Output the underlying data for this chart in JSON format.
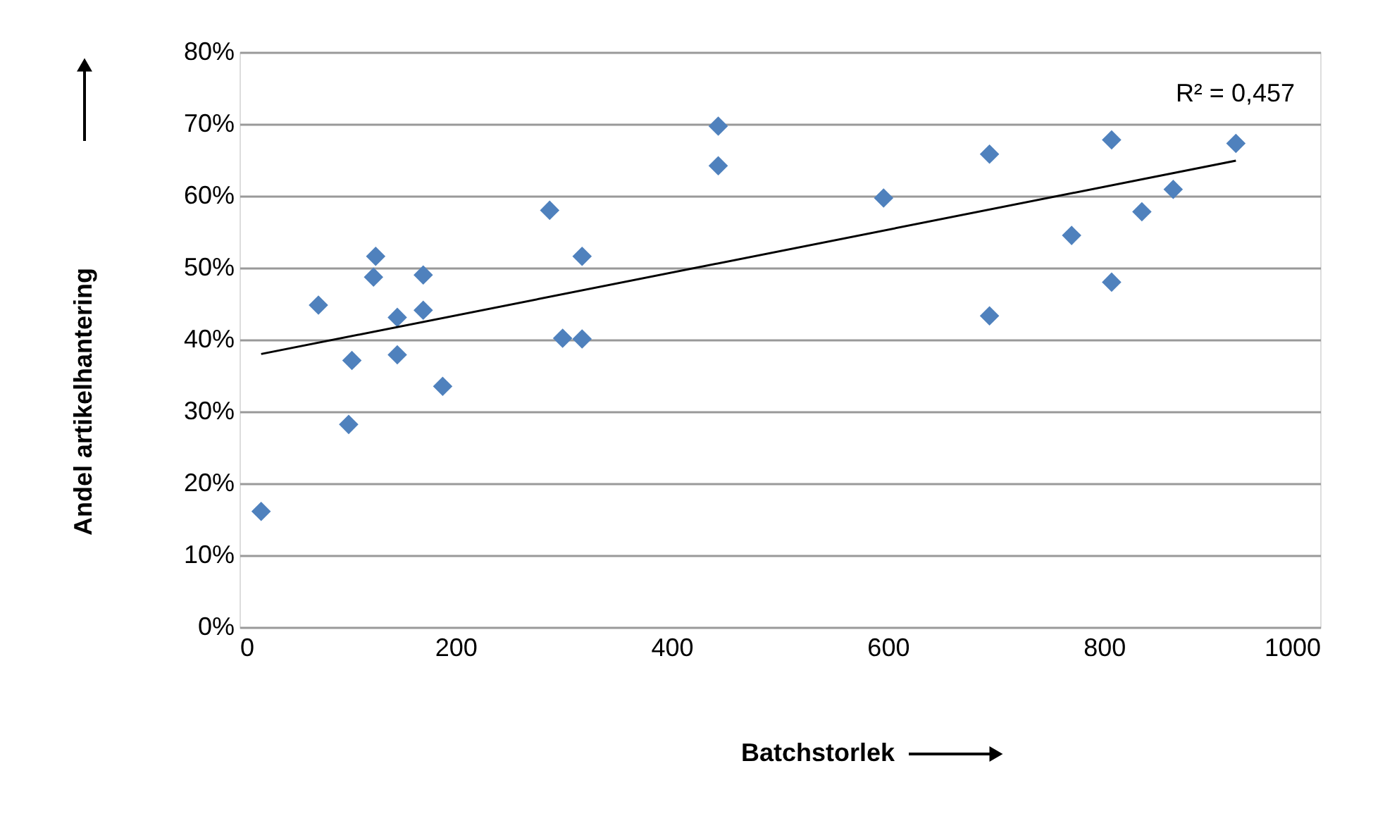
{
  "chart_data": {
    "type": "scatter",
    "xlabel": "Batchstorlek",
    "ylabel": "Andel artikelhantering",
    "xlim": [
      0,
      1000
    ],
    "xticks": [
      0,
      200,
      400,
      600,
      800,
      {
        "value": 1000,
        "label": "1000"
      }
    ],
    "ylim": [
      0,
      80
    ],
    "yticks": [
      {
        "value": 0,
        "label": "0%"
      },
      {
        "value": 10,
        "label": "10%"
      },
      {
        "value": 20,
        "label": "20%"
      },
      {
        "value": 30,
        "label": "30%"
      },
      {
        "value": 40,
        "label": "40%"
      },
      {
        "value": 50,
        "label": "50%"
      },
      {
        "value": 60,
        "label": "60%"
      },
      {
        "value": 70,
        "label": "70%"
      },
      {
        "value": 80,
        "label": "80%"
      }
    ],
    "grid": "y",
    "marker": "diamond",
    "annotations": [
      "R² = 0,457"
    ],
    "series": [
      {
        "color": "#4f81bd",
        "x": [
          20,
          73,
          101,
          104,
          126,
          124,
          146,
          146,
          170,
          170,
          188,
          287,
          299,
          317,
          317,
          443,
          443,
          596,
          694,
          694,
          770,
          807,
          807,
          835,
          864,
          922
        ],
        "values": [
          16.1,
          44.8,
          28.2,
          37.1,
          51.6,
          48.7,
          43.1,
          37.9,
          49.0,
          44.1,
          33.5,
          58.0,
          40.2,
          51.6,
          40.1,
          69.7,
          64.2,
          59.7,
          65.8,
          43.3,
          54.5,
          67.8,
          48.0,
          57.8,
          60.9,
          67.3
        ]
      },
      {
        "type": "line",
        "color": "#000000",
        "x": [
          20,
          922
        ],
        "values": [
          38.0,
          64.9
        ],
        "line_style": "solid",
        "marker": "none"
      }
    ]
  }
}
